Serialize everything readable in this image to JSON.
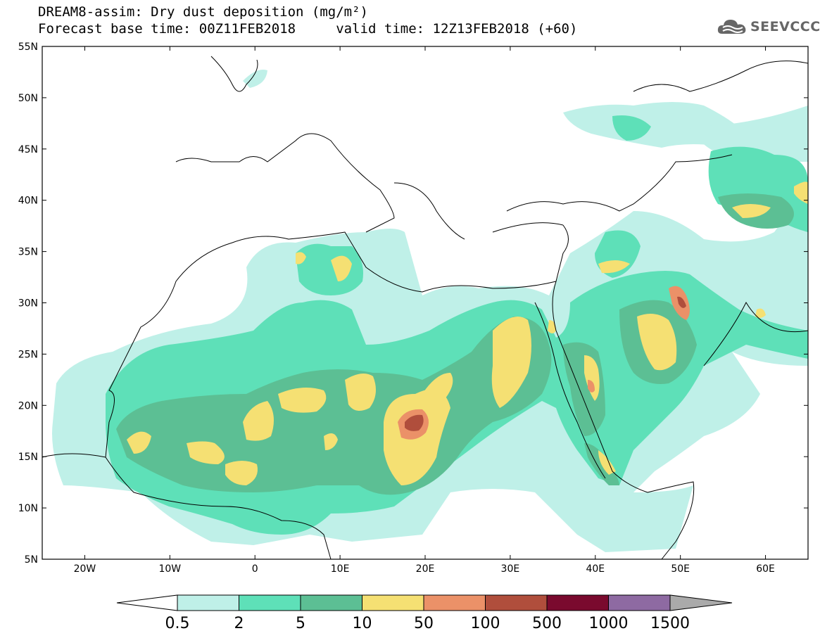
{
  "title_line1": "DREAM8-assim: Dry dust deposition (mg/m²)",
  "title_line2": "Forecast base time: 00Z11FEB2018     valid time: 12Z13FEB2018 (+60)",
  "logo_text": "SEEVCCC",
  "lat_labels": [
    "55N",
    "50N",
    "45N",
    "40N",
    "35N",
    "30N",
    "25N",
    "20N",
    "15N",
    "10N",
    "5N"
  ],
  "lat_values": [
    55,
    50,
    45,
    40,
    35,
    30,
    25,
    20,
    15,
    10,
    5
  ],
  "lon_labels": [
    "20W",
    "10W",
    "0",
    "10E",
    "20E",
    "30E",
    "40E",
    "50E",
    "60E"
  ],
  "lon_values": [
    -20,
    -10,
    0,
    10,
    20,
    30,
    40,
    50,
    60
  ],
  "map_extent": {
    "lon_min": -25,
    "lon_max": 65,
    "lat_min": 5,
    "lat_max": 55
  },
  "colorbar": {
    "labels": [
      "0.5",
      "2",
      "5",
      "10",
      "50",
      "100",
      "500",
      "1000",
      "1500"
    ],
    "colors": [
      "#bff0e8",
      "#5ee0b8",
      "#5cbf94",
      "#f5e073",
      "#eb9168",
      "#b04e3c",
      "#7a0a2e",
      "#8e6aa2"
    ],
    "under_color": "#ffffff",
    "over_color": "#aaaaaa"
  },
  "colors": {
    "level1": "#bff0e8",
    "level2": "#5ee0b8",
    "level3": "#5cbf94",
    "level4": "#f5e073",
    "level5": "#eb9168",
    "level6": "#b04e3c",
    "coast": "#000000"
  }
}
